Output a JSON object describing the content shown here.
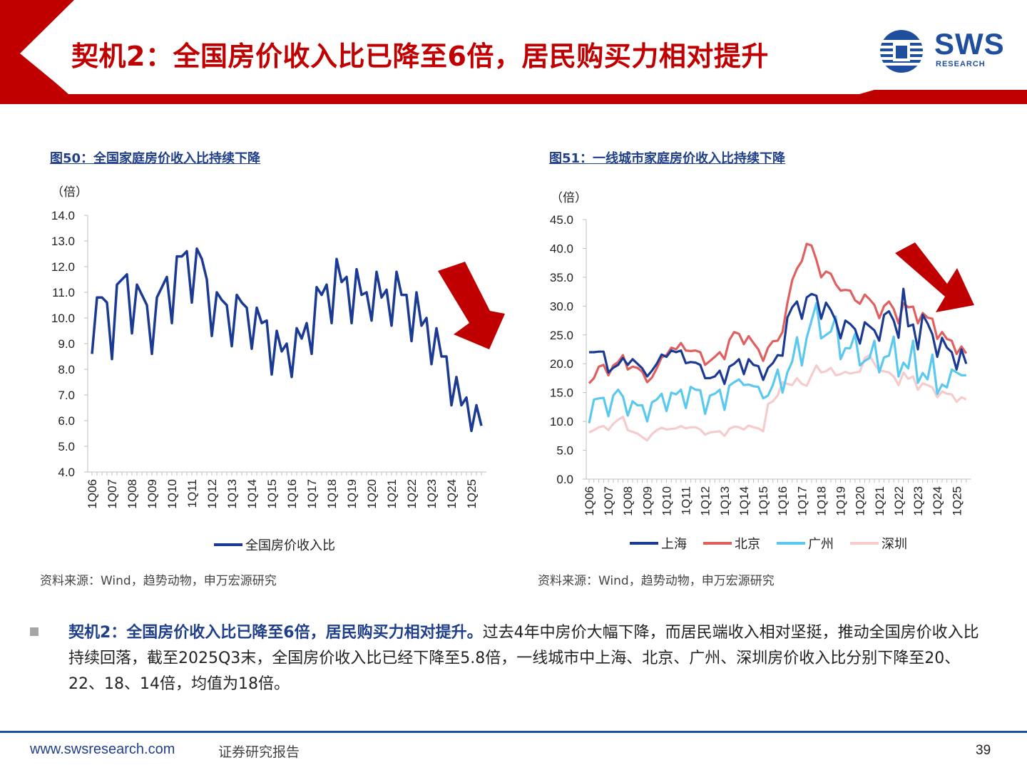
{
  "header": {
    "title": "契机2：全国房价收入比已降至6倍，居民购买力相对提升",
    "logo_text": "SWS",
    "logo_sub": "RESEARCH"
  },
  "colors": {
    "brand_red": "#c00000",
    "brand_blue": "#1f4e9c",
    "arrow_red": "#c00000"
  },
  "charts": {
    "left": {
      "fig_title": "图50：全国家庭房价收入比持续下降",
      "unit": "（倍）",
      "source": "资料来源：Wind，趋势动物，申万宏源研究"
    },
    "right": {
      "fig_title": "图51：一线城市家庭房价收入比持续下降",
      "unit": "（倍）",
      "source": "资料来源：Wind，趋势动物，申万宏源研究"
    }
  },
  "chart_data": [
    {
      "type": "line",
      "title": "图50：全国家庭房价收入比持续下降",
      "ylabel": "（倍）",
      "ylim": [
        4.0,
        14.0
      ],
      "yticks": [
        "4.0",
        "5.0",
        "6.0",
        "7.0",
        "8.0",
        "9.0",
        "10.0",
        "11.0",
        "12.0",
        "13.0",
        "14.0"
      ],
      "xtick_labels": [
        "1Q06",
        "1Q07",
        "1Q08",
        "1Q09",
        "1Q10",
        "1Q11",
        "1Q12",
        "1Q13",
        "1Q14",
        "1Q15",
        "1Q16",
        "1Q17",
        "1Q18",
        "1Q19",
        "1Q20",
        "1Q21",
        "1Q22",
        "1Q23",
        "1Q24",
        "1Q25"
      ],
      "legend_position": "bottom",
      "series": [
        {
          "name": "全国房价收入比",
          "color": "#1a3a94",
          "values": [
            8.6,
            10.8,
            10.8,
            10.6,
            8.4,
            11.3,
            11.5,
            11.7,
            9.4,
            11.3,
            10.9,
            10.5,
            8.6,
            10.8,
            11.2,
            11.6,
            9.8,
            12.4,
            12.4,
            12.6,
            10.6,
            12.7,
            12.3,
            11.5,
            9.3,
            11.0,
            10.7,
            10.5,
            8.9,
            10.9,
            10.6,
            10.4,
            8.8,
            10.4,
            9.8,
            9.9,
            7.8,
            9.5,
            8.7,
            9.0,
            7.7,
            9.6,
            9.2,
            9.8,
            8.6,
            11.2,
            10.9,
            11.3,
            9.8,
            12.3,
            11.4,
            11.6,
            9.8,
            11.9,
            10.9,
            11.0,
            9.9,
            11.8,
            10.8,
            11.1,
            9.7,
            11.8,
            10.9,
            10.9,
            9.1,
            11.0,
            9.7,
            10.0,
            8.2,
            9.6,
            8.5,
            8.5,
            6.6,
            7.7,
            6.6,
            6.9,
            5.6,
            6.6,
            5.8
          ]
        }
      ]
    },
    {
      "type": "line",
      "title": "图51：一线城市家庭房价收入比持续下降",
      "ylabel": "（倍）",
      "ylim": [
        0.0,
        45.0
      ],
      "yticks": [
        "0.0",
        "5.0",
        "10.0",
        "15.0",
        "20.0",
        "25.0",
        "30.0",
        "35.0",
        "40.0",
        "45.0"
      ],
      "xtick_labels": [
        "1Q06",
        "1Q07",
        "1Q08",
        "1Q09",
        "1Q10",
        "1Q11",
        "1Q12",
        "1Q13",
        "1Q14",
        "1Q15",
        "1Q16",
        "1Q17",
        "1Q18",
        "1Q19",
        "1Q20",
        "1Q21",
        "1Q22",
        "1Q23",
        "1Q24",
        "1Q25"
      ],
      "legend_position": "bottom",
      "series": [
        {
          "name": "上海",
          "color": "#1a3a94",
          "values": [
            22.0,
            22.0,
            22.1,
            22.1,
            18.5,
            19.3,
            19.8,
            21.0,
            19.8,
            20.8,
            20.0,
            19.2,
            17.8,
            18.8,
            20.0,
            21.6,
            21.2,
            22.3,
            22.0,
            22.3,
            20.1,
            20.3,
            20.2,
            19.8,
            17.5,
            17.5,
            17.8,
            18.8,
            16.5,
            19.5,
            20.0,
            20.8,
            18.2,
            20.8,
            19.8,
            19.6,
            17.2,
            19.3,
            20.1,
            21.5,
            21.4,
            28.0,
            29.8,
            30.8,
            27.8,
            31.5,
            32.1,
            31.8,
            27.8,
            30.6,
            29.3,
            27.5,
            24.4,
            27.5,
            26.9,
            26.0,
            23.5,
            27.2,
            26.5,
            25.8,
            24.0,
            28.5,
            29.1,
            27.5,
            24.5,
            33.0,
            26.5,
            26.8,
            22.5,
            28.5,
            27.0,
            25.1,
            21.2,
            24.5,
            22.8,
            22.0,
            19.0,
            22.5,
            20.0
          ]
        },
        {
          "name": "北京",
          "color": "#e06060",
          "values": [
            16.6,
            17.5,
            19.5,
            19.8,
            18.0,
            19.7,
            20.3,
            21.5,
            19.0,
            19.5,
            19.3,
            18.6,
            16.8,
            17.6,
            19.2,
            21.1,
            21.5,
            22.8,
            22.5,
            23.6,
            22.3,
            22.2,
            22.3,
            22.0,
            19.8,
            20.5,
            21.2,
            22.0,
            20.8,
            24.1,
            25.5,
            25.2,
            23.4,
            24.8,
            23.6,
            22.5,
            20.5,
            22.8,
            23.9,
            24.0,
            25.5,
            30.5,
            34.5,
            36.5,
            37.8,
            40.8,
            40.5,
            38.0,
            35.0,
            36.0,
            35.6,
            33.8,
            32.7,
            32.8,
            32.7,
            31.0,
            30.4,
            32.0,
            31.2,
            30.2,
            27.9,
            30.0,
            30.8,
            29.5,
            27.0,
            30.5,
            29.8,
            29.9,
            27.0,
            28.8,
            28.0,
            27.8,
            24.3,
            25.5,
            24.3,
            24.0,
            21.7,
            23.0,
            21.8
          ]
        },
        {
          "name": "广州",
          "color": "#5bc8f0",
          "values": [
            9.7,
            13.8,
            14.0,
            14.1,
            10.9,
            14.5,
            15.5,
            14.3,
            11.0,
            13.5,
            12.8,
            12.8,
            10.0,
            13.3,
            13.8,
            14.8,
            11.8,
            15.0,
            14.7,
            15.5,
            12.3,
            16.0,
            15.5,
            15.4,
            11.3,
            14.5,
            14.8,
            15.5,
            12.0,
            16.2,
            16.8,
            17.3,
            16.3,
            16.4,
            16.1,
            16.0,
            14.0,
            14.5,
            16.3,
            19.0,
            15.0,
            18.5,
            20.4,
            24.6,
            19.7,
            24.5,
            27.5,
            30.5,
            24.4,
            25.0,
            25.6,
            28.2,
            20.8,
            22.7,
            22.7,
            25.2,
            19.7,
            20.5,
            21.0,
            24.0,
            18.5,
            21.1,
            21.4,
            24.7,
            17.8,
            20.2,
            19.2,
            24.0,
            16.7,
            18.4,
            17.3,
            21.6,
            14.8,
            16.4,
            15.9,
            19.0,
            18.5,
            18.0,
            18.0
          ]
        },
        {
          "name": "深圳",
          "color": "#f5cbcb",
          "values": [
            8.1,
            8.5,
            9.0,
            9.2,
            8.5,
            9.6,
            10.3,
            10.8,
            8.5,
            8.2,
            7.9,
            7.3,
            6.7,
            7.8,
            8.5,
            8.9,
            8.6,
            8.7,
            8.8,
            9.2,
            8.8,
            9.0,
            9.0,
            8.6,
            7.7,
            8.1,
            8.2,
            8.3,
            7.5,
            8.7,
            9.1,
            9.0,
            8.6,
            9.3,
            9.0,
            8.8,
            8.3,
            13.0,
            13.5,
            14.5,
            16.8,
            16.5,
            16.3,
            17.5,
            16.5,
            16.2,
            18.0,
            19.7,
            18.5,
            18.7,
            19.3,
            18.0,
            18.2,
            18.6,
            18.3,
            18.5,
            18.6,
            21.0,
            21.5,
            20.0,
            18.8,
            18.7,
            18.5,
            17.8,
            16.3,
            18.5,
            17.4,
            17.8,
            15.5,
            16.6,
            16.3,
            15.9,
            14.2,
            15.2,
            14.8,
            14.7,
            13.4,
            14.2,
            13.8
          ]
        }
      ]
    }
  ],
  "body": {
    "lead": "契机2：全国房价收入比已降至6倍，居民购买力相对提升。",
    "text": "过去4年中房价大幅下降，而居民端收入相对坚挺，推动全国房价收入比持续回落，截至2025Q3末，全国房价收入比已经下降至5.8倍，一线城市中上海、北京、广州、深圳房价收入比分别下降至20、22、18、14倍，均值为18倍。"
  },
  "footer": {
    "url": "www.swsresearch.com",
    "label": "证券研究报告",
    "page": "39"
  }
}
